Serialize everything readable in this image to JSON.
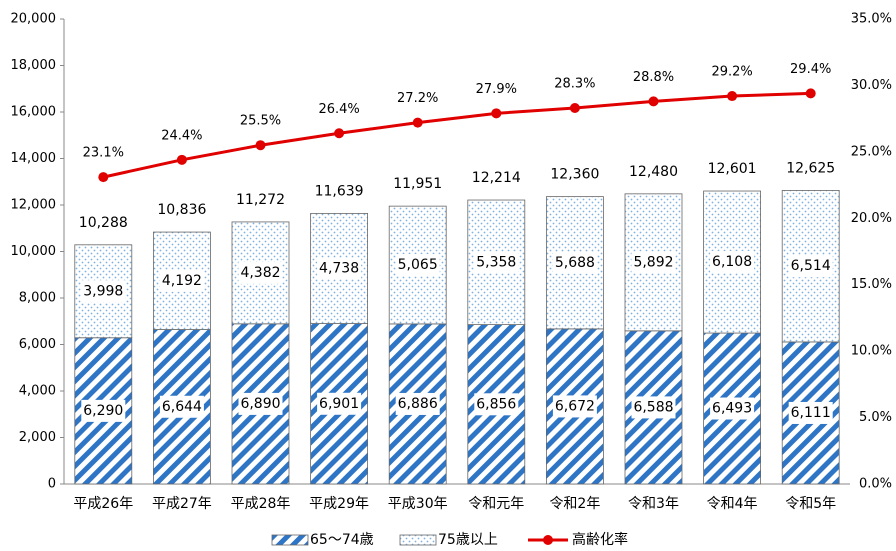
{
  "chart_data": {
    "type": "bar",
    "categories": [
      "平成26年",
      "平成27年",
      "平成28年",
      "平成29年",
      "平成30年",
      "令和元年",
      "令和2年",
      "令和3年",
      "令和4年",
      "令和5年"
    ],
    "series": [
      {
        "name": "65～74歳",
        "color": "#2e75c6",
        "values": [
          6290,
          6644,
          6890,
          6901,
          6886,
          6856,
          6672,
          6588,
          6493,
          6111
        ],
        "value_labels": [
          "6,290",
          "6,644",
          "6,890",
          "6,901",
          "6,886",
          "6,856",
          "6,672",
          "6,588",
          "6,493",
          "6,111"
        ]
      },
      {
        "name": "75歳以上",
        "color": "#7fb2e0",
        "values": [
          3998,
          4192,
          4382,
          4738,
          5065,
          5358,
          5688,
          5892,
          6108,
          6514
        ],
        "value_labels": [
          "3,998",
          "4,192",
          "4,382",
          "4,738",
          "5,065",
          "5,358",
          "5,688",
          "5,892",
          "6,108",
          "6,514"
        ]
      },
      {
        "name": "高齢化率",
        "type": "line",
        "axis": "y2",
        "color": "#e00000",
        "values": [
          23.1,
          24.4,
          25.5,
          26.4,
          27.2,
          27.9,
          28.3,
          28.8,
          29.2,
          29.4
        ],
        "value_labels": [
          "23.1%",
          "24.4%",
          "25.5%",
          "26.4%",
          "27.2%",
          "27.9%",
          "28.3%",
          "28.8%",
          "29.2%",
          "29.4%"
        ]
      }
    ],
    "total_labels": [
      "10,288",
      "10,836",
      "11,272",
      "11,639",
      "11,951",
      "12,214",
      "12,360",
      "12,480",
      "12,601",
      "12,625"
    ],
    "stacked": true,
    "ylim": [
      0,
      20000
    ],
    "yticks": [
      0,
      {
        "value": 2000,
        "label": "2,000"
      },
      {
        "value": 4000,
        "label": "4,000"
      },
      {
        "value": 6000,
        "label": "6,000"
      },
      {
        "value": 8000,
        "label": "8,000"
      },
      {
        "value": 10000,
        "label": "10,000"
      },
      {
        "value": 12000,
        "label": "12,000"
      },
      {
        "value": 14000,
        "label": "14,000"
      },
      {
        "value": 16000,
        "label": "16,000"
      },
      {
        "value": 18000,
        "label": "18,000"
      },
      {
        "value": 20000,
        "label": "20,000"
      }
    ],
    "y2lim": [
      0,
      35
    ],
    "y2ticks": [
      {
        "value": 0,
        "label": "0.0%"
      },
      {
        "value": 5,
        "label": "5.0%"
      },
      {
        "value": 10,
        "label": "10.0%"
      },
      {
        "value": 15,
        "label": "15.0%"
      },
      {
        "value": 20,
        "label": "20.0%"
      },
      {
        "value": 25,
        "label": "25.0%"
      },
      {
        "value": 30,
        "label": "30.0%"
      },
      {
        "value": 35,
        "label": "35.0%"
      }
    ],
    "grid": false,
    "legend": "bottom"
  }
}
